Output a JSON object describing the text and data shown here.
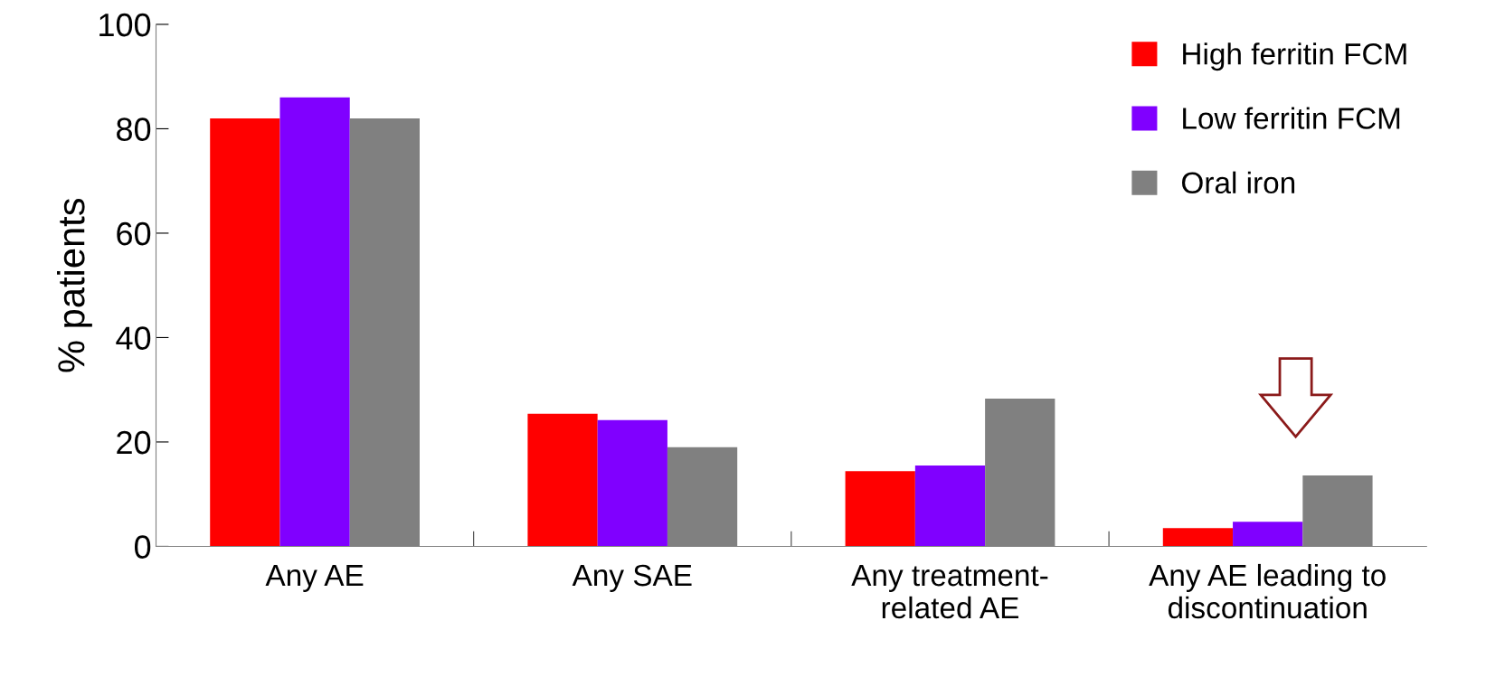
{
  "chart_data": {
    "type": "bar",
    "ylabel": "% patients",
    "categories": [
      "Any AE",
      "Any SAE",
      "Any treatment-\nrelated AE",
      "Any AE leading to\ndiscontinuation"
    ],
    "series": [
      {
        "name": "High ferritin FCM",
        "color": "#ff0000",
        "values": [
          82,
          25.4,
          14.4,
          3.5
        ]
      },
      {
        "name": "Low ferritin FCM",
        "color": "#8000ff",
        "values": [
          86,
          24.2,
          15.5,
          4.7
        ]
      },
      {
        "name": "Oral iron",
        "color": "#808080",
        "values": [
          82,
          19,
          28.3,
          13.6
        ]
      }
    ],
    "ylim": [
      0,
      100
    ],
    "yticks": [
      0,
      20,
      40,
      60,
      80,
      100
    ],
    "grid": false,
    "legend": "top right"
  }
}
